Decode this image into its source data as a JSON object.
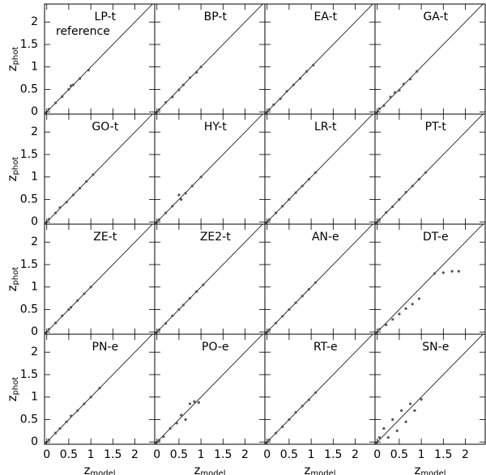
{
  "chart_data": [
    {
      "type": "scatter",
      "title": "LP-t",
      "annotation": "reference",
      "ylabel": "z",
      "ylabel_sub": "phot",
      "x": [
        0.05,
        0.2,
        0.35,
        0.5,
        0.55,
        0.6,
        0.75,
        0.95
      ],
      "y": [
        0.06,
        0.2,
        0.34,
        0.5,
        0.58,
        0.6,
        0.74,
        0.93
      ],
      "xlim": [
        -0.05,
        2.45
      ],
      "ylim": [
        -0.05,
        2.4
      ],
      "xticks": [
        0,
        0.5,
        1,
        1.5,
        2
      ],
      "yticks": [
        0,
        0.5,
        1,
        1.5,
        2
      ]
    },
    {
      "type": "scatter",
      "title": "BP-t",
      "x": [
        0.05,
        0.2,
        0.35,
        0.5,
        0.6,
        0.75,
        0.9,
        1.0
      ],
      "y": [
        0.05,
        0.21,
        0.33,
        0.49,
        0.6,
        0.76,
        0.88,
        1.0
      ],
      "xlim": [
        -0.05,
        2.45
      ],
      "ylim": [
        -0.05,
        2.4
      ],
      "xticks": [
        0,
        0.5,
        1,
        1.5,
        2
      ],
      "yticks": [
        0,
        0.5,
        1,
        1.5,
        2
      ]
    },
    {
      "type": "scatter",
      "title": "EA-t",
      "x": [
        0.05,
        0.15,
        0.3,
        0.45,
        0.6,
        0.75,
        0.9,
        1.05
      ],
      "y": [
        0.05,
        0.16,
        0.29,
        0.46,
        0.6,
        0.74,
        0.9,
        1.04
      ],
      "xlim": [
        -0.05,
        2.45
      ],
      "ylim": [
        -0.05,
        2.4
      ],
      "xticks": [
        0,
        0.5,
        1,
        1.5,
        2
      ],
      "yticks": [
        0,
        0.5,
        1,
        1.5,
        2
      ]
    },
    {
      "type": "scatter",
      "title": "GA-t",
      "x": [
        0.05,
        0.15,
        0.3,
        0.4,
        0.5,
        0.6,
        0.75,
        0.9
      ],
      "y": [
        0.07,
        0.14,
        0.33,
        0.43,
        0.48,
        0.62,
        0.73,
        0.9
      ],
      "xlim": [
        -0.05,
        2.45
      ],
      "ylim": [
        -0.05,
        2.4
      ],
      "xticks": [
        0,
        0.5,
        1,
        1.5,
        2
      ],
      "yticks": [
        0,
        0.5,
        1,
        1.5,
        2
      ]
    },
    {
      "type": "scatter",
      "title": "GO-t",
      "ylabel": "z",
      "ylabel_sub": "phot",
      "x": [
        0.05,
        0.2,
        0.3,
        0.45,
        0.6,
        0.75,
        0.9,
        1.05
      ],
      "y": [
        0.06,
        0.2,
        0.32,
        0.44,
        0.6,
        0.75,
        0.9,
        1.05
      ],
      "xlim": [
        -0.05,
        2.45
      ],
      "ylim": [
        -0.05,
        2.4
      ],
      "xticks": [
        0,
        0.5,
        1,
        1.5,
        2
      ],
      "yticks": [
        0,
        0.5,
        1,
        1.5,
        2
      ]
    },
    {
      "type": "scatter",
      "title": "HY-t",
      "x": [
        0.05,
        0.2,
        0.35,
        0.5,
        0.55,
        0.65,
        0.8,
        1.0
      ],
      "y": [
        0.05,
        0.2,
        0.35,
        0.6,
        0.5,
        0.64,
        0.8,
        1.0
      ],
      "xlim": [
        -0.05,
        2.45
      ],
      "ylim": [
        -0.05,
        2.4
      ],
      "xticks": [
        0,
        0.5,
        1,
        1.5,
        2
      ],
      "yticks": [
        0,
        0.5,
        1,
        1.5,
        2
      ]
    },
    {
      "type": "scatter",
      "title": "LR-t",
      "x": [
        0.05,
        0.2,
        0.35,
        0.5,
        0.65,
        0.8,
        0.95,
        1.1
      ],
      "y": [
        0.05,
        0.2,
        0.35,
        0.5,
        0.65,
        0.8,
        0.95,
        1.1
      ],
      "xlim": [
        -0.05,
        2.45
      ],
      "ylim": [
        -0.05,
        2.4
      ],
      "xticks": [
        0,
        0.5,
        1,
        1.5,
        2
      ],
      "yticks": [
        0,
        0.5,
        1,
        1.5,
        2
      ]
    },
    {
      "type": "scatter",
      "title": "PT-t",
      "x": [
        0.05,
        0.2,
        0.35,
        0.5,
        0.65,
        0.8,
        0.95,
        1.1
      ],
      "y": [
        0.05,
        0.21,
        0.34,
        0.5,
        0.66,
        0.8,
        0.95,
        1.1
      ],
      "xlim": [
        -0.05,
        2.45
      ],
      "ylim": [
        -0.05,
        2.4
      ],
      "xticks": [
        0,
        0.5,
        1,
        1.5,
        2
      ],
      "yticks": [
        0,
        0.5,
        1,
        1.5,
        2
      ]
    },
    {
      "type": "scatter",
      "title": "ZE-t",
      "ylabel": "z",
      "ylabel_sub": "phot",
      "x": [
        0.05,
        0.2,
        0.35,
        0.5,
        0.55,
        0.7,
        0.85,
        1.0
      ],
      "y": [
        0.06,
        0.2,
        0.36,
        0.5,
        0.55,
        0.7,
        0.85,
        1.0
      ],
      "xlim": [
        -0.05,
        2.45
      ],
      "ylim": [
        -0.05,
        2.4
      ],
      "xticks": [
        0,
        0.5,
        1,
        1.5,
        2
      ],
      "yticks": [
        0,
        0.5,
        1,
        1.5,
        2
      ]
    },
    {
      "type": "scatter",
      "title": "ZE2-t",
      "x": [
        0.05,
        0.2,
        0.35,
        0.5,
        0.6,
        0.75,
        0.9,
        1.05
      ],
      "y": [
        0.05,
        0.19,
        0.36,
        0.5,
        0.6,
        0.75,
        0.9,
        1.05
      ],
      "xlim": [
        -0.05,
        2.45
      ],
      "ylim": [
        -0.05,
        2.4
      ],
      "xticks": [
        0,
        0.5,
        1,
        1.5,
        2
      ],
      "yticks": [
        0,
        0.5,
        1,
        1.5,
        2
      ]
    },
    {
      "type": "scatter",
      "title": "AN-e",
      "x": [
        0.05,
        0.2,
        0.35,
        0.5,
        0.65,
        0.8,
        0.95,
        1.1
      ],
      "y": [
        0.05,
        0.2,
        0.35,
        0.5,
        0.65,
        0.8,
        0.95,
        1.1
      ],
      "xlim": [
        -0.05,
        2.45
      ],
      "ylim": [
        -0.05,
        2.4
      ],
      "xticks": [
        0,
        0.5,
        1,
        1.5,
        2
      ],
      "yticks": [
        0,
        0.5,
        1,
        1.5,
        2
      ]
    },
    {
      "type": "scatter",
      "title": "DT-e",
      "x": [
        0.05,
        0.2,
        0.35,
        0.5,
        0.65,
        0.8,
        0.95,
        1.3,
        1.5,
        1.7,
        1.85
      ],
      "y": [
        0.06,
        0.16,
        0.28,
        0.4,
        0.52,
        0.62,
        0.74,
        1.3,
        1.32,
        1.35,
        1.35
      ],
      "xlim": [
        -0.05,
        2.45
      ],
      "ylim": [
        -0.05,
        2.4
      ],
      "xticks": [
        0,
        0.5,
        1,
        1.5,
        2
      ],
      "yticks": [
        0,
        0.5,
        1,
        1.5,
        2
      ]
    },
    {
      "type": "scatter",
      "title": "PN-e",
      "ylabel": "z",
      "ylabel_sub": "phot",
      "xlabel": "z",
      "xlabel_sub": "model",
      "x": [
        0.05,
        0.2,
        0.3,
        0.45,
        0.55,
        0.7,
        0.85,
        1.0,
        1.2
      ],
      "y": [
        0.05,
        0.2,
        0.3,
        0.45,
        0.58,
        0.7,
        0.85,
        1.0,
        1.2
      ],
      "xlim": [
        -0.05,
        2.45
      ],
      "ylim": [
        -0.05,
        2.4
      ],
      "xticks": [
        0,
        0.5,
        1,
        1.5,
        2
      ],
      "yticks": [
        0,
        0.5,
        1,
        1.5,
        2
      ]
    },
    {
      "type": "scatter",
      "title": "PO-e",
      "xlabel": "z",
      "xlabel_sub": "model",
      "x": [
        0.05,
        0.15,
        0.3,
        0.45,
        0.55,
        0.65,
        0.75,
        0.85,
        0.95
      ],
      "y": [
        0.04,
        0.12,
        0.3,
        0.42,
        0.6,
        0.5,
        0.85,
        0.9,
        0.88
      ],
      "xlim": [
        -0.05,
        2.45
      ],
      "ylim": [
        -0.05,
        2.4
      ],
      "xticks": [
        0,
        0.5,
        1,
        1.5,
        2
      ],
      "yticks": [
        0,
        0.5,
        1,
        1.5,
        2
      ]
    },
    {
      "type": "scatter",
      "title": "RT-e",
      "xlabel": "z",
      "xlabel_sub": "model",
      "x": [
        0.05,
        0.2,
        0.35,
        0.5,
        0.65,
        0.8,
        0.95,
        1.1
      ],
      "y": [
        0.05,
        0.2,
        0.34,
        0.5,
        0.66,
        0.8,
        0.94,
        1.1
      ],
      "xlim": [
        -0.05,
        2.45
      ],
      "ylim": [
        -0.05,
        2.4
      ],
      "xticks": [
        0,
        0.5,
        1,
        1.5,
        2
      ],
      "yticks": [
        0,
        0.5,
        1,
        1.5,
        2
      ]
    },
    {
      "type": "scatter",
      "title": "SN-e",
      "xlabel": "z",
      "xlabel_sub": "model",
      "x": [
        0.05,
        0.15,
        0.25,
        0.35,
        0.45,
        0.55,
        0.65,
        0.75,
        0.85,
        1.0
      ],
      "y": [
        0.1,
        0.3,
        0.1,
        0.5,
        0.25,
        0.7,
        0.45,
        0.85,
        0.7,
        0.95
      ],
      "xlim": [
        -0.05,
        2.45
      ],
      "ylim": [
        -0.05,
        2.4
      ],
      "xticks": [
        0,
        0.5,
        1,
        1.5,
        2
      ],
      "yticks": [
        0,
        0.5,
        1,
        1.5,
        2
      ]
    }
  ]
}
